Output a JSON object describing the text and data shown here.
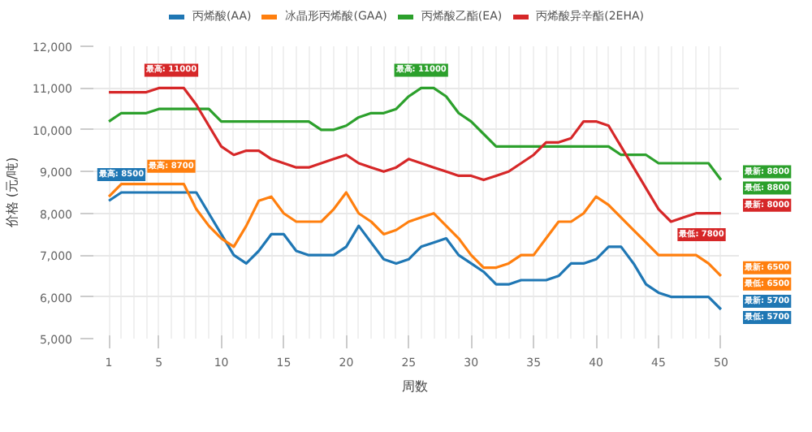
{
  "chart_data": {
    "type": "line",
    "xlabel": "周数",
    "ylabel": "价格 (元/吨)",
    "x": [
      1,
      2,
      3,
      4,
      5,
      6,
      7,
      8,
      9,
      10,
      11,
      12,
      13,
      14,
      15,
      16,
      17,
      18,
      19,
      20,
      21,
      22,
      23,
      24,
      25,
      26,
      27,
      28,
      29,
      30,
      31,
      32,
      33,
      34,
      35,
      36,
      37,
      38,
      39,
      40,
      41,
      42,
      43,
      44,
      45,
      46,
      47,
      48,
      49,
      50
    ],
    "series": [
      {
        "name": "丙烯酸(AA)",
        "color": "#1f77b4",
        "values": [
          8300,
          8500,
          8500,
          8500,
          8500,
          8500,
          8500,
          8500,
          8000,
          7500,
          7000,
          6800,
          7100,
          7500,
          7500,
          7100,
          7000,
          7000,
          7000,
          7200,
          7700,
          7300,
          6900,
          6800,
          6900,
          7200,
          7300,
          7400,
          7000,
          6800,
          6600,
          6300,
          6300,
          6400,
          6400,
          6400,
          6500,
          6800,
          6800,
          6900,
          7200,
          7200,
          6800,
          6300,
          6100,
          6000,
          6000,
          6000,
          6000,
          5700
        ]
      },
      {
        "name": "冰晶形丙烯酸(GAA)",
        "color": "#ff7f0e",
        "values": [
          8400,
          8700,
          8700,
          8700,
          8700,
          8700,
          8700,
          8100,
          7700,
          7400,
          7200,
          7700,
          8300,
          8400,
          8000,
          7800,
          7800,
          7800,
          8100,
          8500,
          8000,
          7800,
          7500,
          7600,
          7800,
          7900,
          8000,
          7700,
          7400,
          7000,
          6700,
          6700,
          6800,
          7000,
          7000,
          7400,
          7800,
          7800,
          8000,
          8400,
          8200,
          7900,
          7600,
          7300,
          7000,
          7000,
          7000,
          7000,
          6800,
          6500
        ]
      },
      {
        "name": "丙烯酸乙酯(EA)",
        "color": "#2ca02c",
        "values": [
          10200,
          10400,
          10400,
          10400,
          10500,
          10500,
          10500,
          10500,
          10500,
          10200,
          10200,
          10200,
          10200,
          10200,
          10200,
          10200,
          10200,
          10000,
          10000,
          10100,
          10300,
          10400,
          10400,
          10500,
          10800,
          11000,
          11000,
          10800,
          10400,
          10200,
          9900,
          9600,
          9600,
          9600,
          9600,
          9600,
          9600,
          9600,
          9600,
          9600,
          9600,
          9400,
          9400,
          9400,
          9200,
          9200,
          9200,
          9200,
          9200,
          8800
        ]
      },
      {
        "name": "丙烯酸异辛酯(2EHA)",
        "color": "#d62728",
        "values": [
          10900,
          10900,
          10900,
          10900,
          11000,
          11000,
          11000,
          10600,
          10100,
          9600,
          9400,
          9500,
          9500,
          9300,
          9200,
          9100,
          9100,
          9200,
          9300,
          9400,
          9200,
          9100,
          9000,
          9100,
          9300,
          9200,
          9100,
          9000,
          8900,
          8900,
          8800,
          8900,
          9000,
          9200,
          9400,
          9700,
          9700,
          9800,
          10200,
          10200,
          10100,
          9600,
          9100,
          8600,
          8100,
          7800,
          7900,
          8000,
          8000,
          8000
        ]
      }
    ],
    "xlim": [
      -0.5,
      51.5
    ],
    "xticks": [
      1,
      5,
      10,
      15,
      20,
      25,
      30,
      35,
      40,
      45,
      50
    ],
    "ylim": [
      5000,
      12000
    ],
    "yticks": [
      {
        "value": 5000,
        "label": "5,000"
      },
      {
        "value": 6000,
        "label": "6,000"
      },
      {
        "value": 7000,
        "label": "7,000"
      },
      {
        "value": 8000,
        "label": "8,000"
      },
      {
        "value": 9000,
        "label": "9,000"
      },
      {
        "value": 10000,
        "label": "10,000"
      },
      {
        "value": 11000,
        "label": "11,000"
      },
      {
        "value": 12000,
        "label": "12,000"
      }
    ],
    "grid": true,
    "legend": "top",
    "marker": "none",
    "line_style": "solid",
    "annotations": [
      {
        "text": "最高: 11000",
        "x": 6,
        "y": 11000
      },
      {
        "text": "最高: 11000",
        "x": 26,
        "y": 11000
      },
      {
        "text": "最高: 8700",
        "x": 6,
        "y": 8700
      },
      {
        "text": "最高: 8500",
        "x": 2,
        "y": 8500
      },
      {
        "text": "最新: 8800",
        "x": 50,
        "y": 8800
      },
      {
        "text": "最低: 8800",
        "x": 50,
        "y": 8800
      },
      {
        "text": "最新: 8000",
        "x": 50,
        "y": 8000
      },
      {
        "text": "最低: 7800",
        "x": 46,
        "y": 7800
      },
      {
        "text": "最新: 6500",
        "x": 50,
        "y": 6500
      },
      {
        "text": "最低: 6500",
        "x": 50,
        "y": 6500
      },
      {
        "text": "最新: 5700",
        "x": 50,
        "y": 5700
      },
      {
        "text": "最低: 5700",
        "x": 50,
        "y": 5700
      }
    ]
  }
}
